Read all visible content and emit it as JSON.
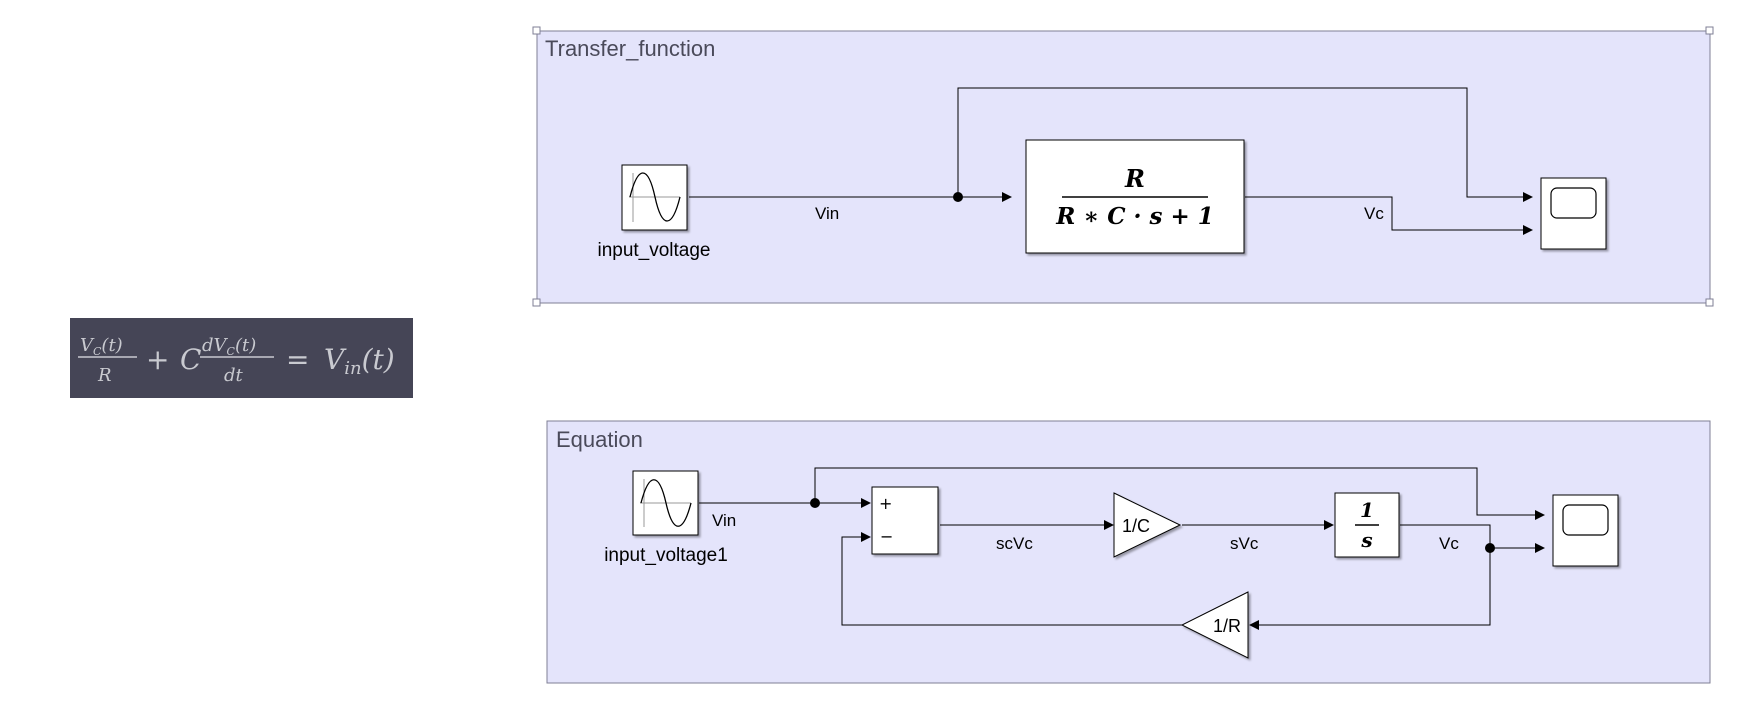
{
  "equation": {
    "num1": "V",
    "num1_sub": "C",
    "num1_rest": "(t)",
    "den1": "R",
    "plus": "+",
    "coef": "C",
    "num2": "dV",
    "num2_sub": "C",
    "num2_rest": "(t)",
    "den2": "dt",
    "equals": "=",
    "rhs": "V",
    "rhs_sub": "in",
    "rhs_rest": "(t)"
  },
  "transfer_area": {
    "title": "Transfer_function",
    "source_label": "input_voltage",
    "signal_in": "Vin",
    "signal_out": "Vc",
    "tf_numerator": "R",
    "tf_denominator": "R ∗ C · s + 1"
  },
  "equation_area": {
    "title": "Equation",
    "source_label": "input_voltage1",
    "signal_in": "Vin",
    "sum_plus": "+",
    "sum_minus": "−",
    "signal_sum_out": "scVc",
    "gain_c": "1/C",
    "signal_gain_out": "sVc",
    "integrator_num": "1",
    "integrator_den": "s",
    "signal_out": "Vc",
    "gain_r": "1/R"
  },
  "colors": {
    "area_fill": "#e4e4fb",
    "area_border": "#7f7f95",
    "equation_bg": "#454556"
  }
}
